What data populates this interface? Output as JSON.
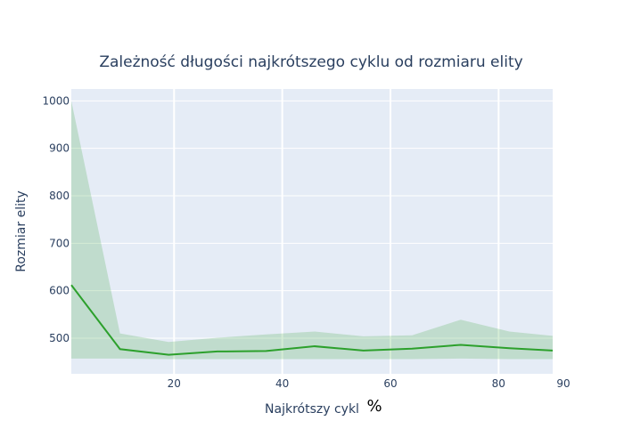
{
  "chart_data": {
    "type": "line",
    "title": "Zależność długości najkrótszego cyklu od rozmiaru elity",
    "xlabel": "Najkrótszy cykl",
    "x_unit_label": "%",
    "ylabel": "Rozmiar elity",
    "xlim": [
      1,
      90
    ],
    "ylim": [
      425,
      1025
    ],
    "x_ticks": [
      20,
      40,
      60,
      80
    ],
    "x_max_label": "90",
    "y_ticks": [
      500,
      600,
      700,
      800,
      900,
      1000
    ],
    "grid": true,
    "legend": "none",
    "series": [
      {
        "x": [
          1,
          10,
          19,
          28,
          37,
          46,
          55,
          64,
          73,
          82,
          90
        ],
        "mean": [
          612,
          477,
          465,
          472,
          473,
          483,
          474,
          478,
          486,
          479,
          474
        ],
        "min": [
          457,
          457,
          456,
          456,
          456,
          456,
          456,
          456,
          457,
          456,
          456
        ],
        "max": [
          1000,
          510,
          492,
          501,
          508,
          514,
          504,
          506,
          539,
          514,
          505
        ],
        "line_color": "#2ca02c",
        "band_color": "#2ca02c"
      }
    ],
    "plot_background": "#e5ecf6"
  }
}
